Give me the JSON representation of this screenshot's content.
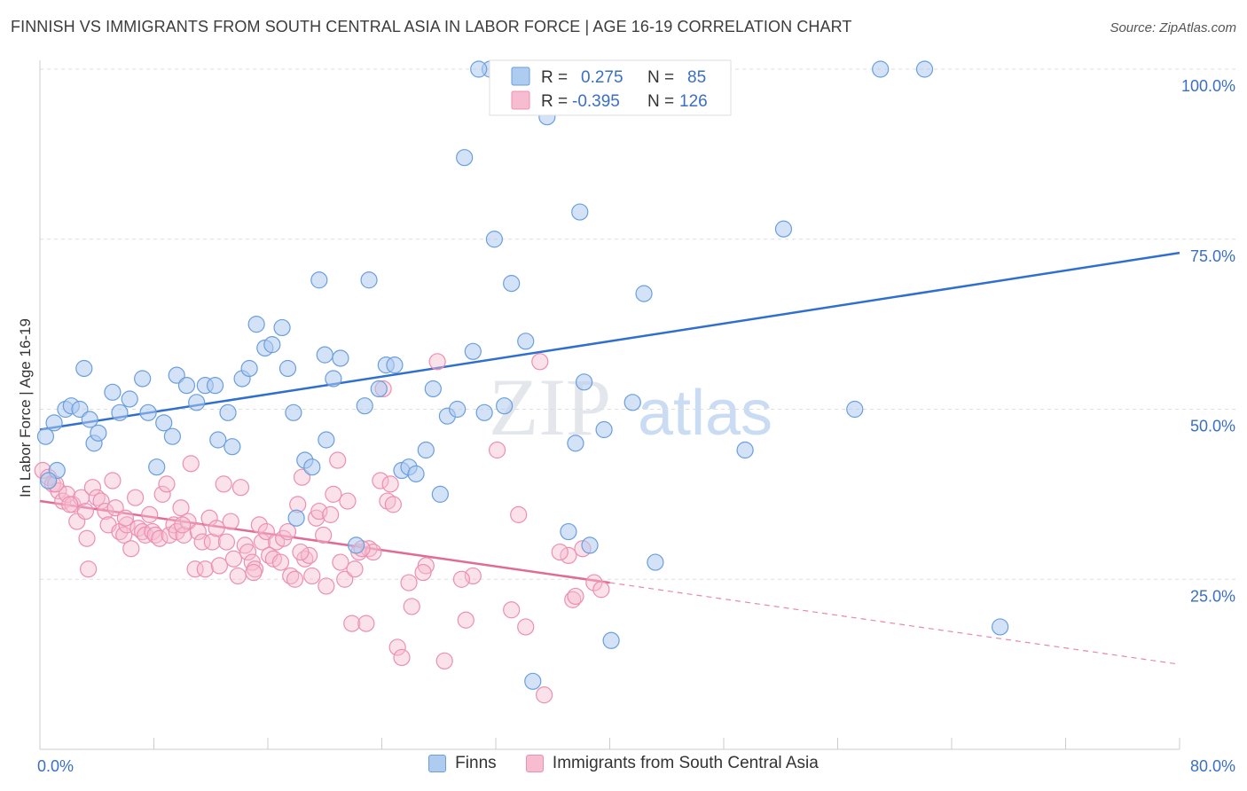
{
  "title": "FINNISH VS IMMIGRANTS FROM SOUTH CENTRAL ASIA IN LABOR FORCE | AGE 16-19 CORRELATION CHART",
  "source": "Source: ZipAtlas.com",
  "colors": {
    "blue_fill": "#aecbf0",
    "blue_stroke": "#6a9fdc",
    "blue_line": "#2f6fcf",
    "pink_fill": "#f7bcd0",
    "pink_stroke": "#ec8fb0",
    "pink_line": "#e06c96",
    "tick_text": "#3a6fc4",
    "grid": "#dddddd"
  },
  "legend_box": {
    "rows": [
      {
        "r_label": "R =",
        "r_value": "0.275",
        "n_label": "N =",
        "n_value": "85"
      },
      {
        "r_label": "R =",
        "r_value": "-0.395",
        "n_label": "N =",
        "n_value": "126"
      }
    ]
  },
  "bottom_legend": {
    "finns": "Finns",
    "immigrants": "Immigrants from South Central Asia"
  },
  "watermark": {
    "part1": "ZIP",
    "part2": "atlas"
  },
  "chart_data": {
    "type": "scatter",
    "title": "FINNISH VS IMMIGRANTS FROM SOUTH CENTRAL ASIA IN LABOR FORCE | AGE 16-19 CORRELATION CHART",
    "xlabel": "",
    "ylabel": "In Labor Force | Age 16-19",
    "xlim": [
      0,
      80
    ],
    "ylim": [
      0,
      100
    ],
    "x_tick_labels": [
      "0.0%",
      "80.0%"
    ],
    "y_tick_labels": [
      "100.0%",
      "75.0%",
      "50.0%",
      "25.0%"
    ],
    "y_ticks": [
      100,
      75,
      50,
      25
    ],
    "grid": true,
    "legend_placement": "bottom",
    "series": [
      {
        "name": "Finns",
        "r": 0.275,
        "n": 85,
        "trend": {
          "x": [
            0,
            80
          ],
          "y": [
            47.0,
            73.0
          ],
          "style": "solid"
        },
        "points": [
          [
            0.4,
            46.0
          ],
          [
            1.0,
            48.0
          ],
          [
            1.2,
            41.0
          ],
          [
            1.8,
            50.0
          ],
          [
            2.2,
            50.5
          ],
          [
            2.8,
            50.0
          ],
          [
            3.1,
            56.0
          ],
          [
            3.5,
            48.5
          ],
          [
            3.8,
            45.0
          ],
          [
            4.1,
            46.5
          ],
          [
            5.1,
            52.5
          ],
          [
            5.6,
            49.5
          ],
          [
            6.3,
            51.5
          ],
          [
            7.2,
            54.5
          ],
          [
            7.6,
            49.5
          ],
          [
            8.2,
            41.5
          ],
          [
            8.7,
            48.0
          ],
          [
            9.3,
            46.0
          ],
          [
            9.6,
            55.0
          ],
          [
            10.3,
            53.5
          ],
          [
            11.0,
            51.0
          ],
          [
            11.6,
            53.5
          ],
          [
            12.3,
            53.5
          ],
          [
            12.5,
            45.5
          ],
          [
            13.2,
            49.5
          ],
          [
            13.5,
            44.5
          ],
          [
            14.2,
            54.5
          ],
          [
            14.7,
            56.0
          ],
          [
            15.2,
            62.5
          ],
          [
            15.8,
            59.0
          ],
          [
            16.3,
            59.5
          ],
          [
            17.0,
            62.0
          ],
          [
            17.4,
            56.0
          ],
          [
            17.8,
            49.5
          ],
          [
            18.6,
            42.5
          ],
          [
            19.1,
            41.5
          ],
          [
            19.6,
            69.0
          ],
          [
            20.1,
            45.5
          ],
          [
            20.6,
            54.5
          ],
          [
            21.1,
            57.5
          ],
          [
            22.2,
            30.0
          ],
          [
            22.8,
            50.5
          ],
          [
            23.1,
            69.0
          ],
          [
            23.8,
            53.0
          ],
          [
            24.3,
            56.5
          ],
          [
            24.9,
            56.5
          ],
          [
            25.4,
            41.0
          ],
          [
            25.9,
            41.5
          ],
          [
            26.4,
            40.5
          ],
          [
            27.1,
            44.0
          ],
          [
            27.6,
            53.0
          ],
          [
            28.1,
            37.5
          ],
          [
            28.6,
            49.0
          ],
          [
            29.3,
            50.0
          ],
          [
            29.8,
            87.0
          ],
          [
            30.4,
            58.5
          ],
          [
            31.2,
            49.5
          ],
          [
            31.6,
            100.0
          ],
          [
            31.9,
            75.0
          ],
          [
            32.6,
            50.5
          ],
          [
            33.1,
            68.5
          ],
          [
            34.1,
            60.0
          ],
          [
            34.4,
            100.0
          ],
          [
            34.6,
            10.0
          ],
          [
            35.6,
            93.0
          ],
          [
            37.1,
            32.0
          ],
          [
            37.6,
            45.0
          ],
          [
            37.9,
            79.0
          ],
          [
            38.2,
            54.0
          ],
          [
            38.6,
            30.0
          ],
          [
            39.6,
            47.0
          ],
          [
            40.1,
            16.0
          ],
          [
            41.6,
            51.0
          ],
          [
            42.4,
            67.0
          ],
          [
            43.2,
            27.5
          ],
          [
            49.5,
            44.0
          ],
          [
            52.2,
            76.5
          ],
          [
            57.2,
            50.0
          ],
          [
            59.0,
            100.0
          ],
          [
            62.1,
            100.0
          ],
          [
            67.4,
            18.0
          ],
          [
            18.0,
            34.0
          ],
          [
            20.0,
            58.0
          ],
          [
            30.8,
            100.0
          ],
          [
            0.6,
            39.5
          ]
        ]
      },
      {
        "name": "Immigrants from South Central Asia",
        "r": -0.395,
        "n": 126,
        "trend": {
          "x": [
            0,
            40
          ],
          "y": [
            36.5,
            24.5
          ],
          "style": "solid"
        },
        "trend_extension": {
          "x": [
            40,
            80
          ],
          "y": [
            24.5,
            12.5
          ],
          "style": "dashed"
        },
        "points": [
          [
            0.2,
            41.0
          ],
          [
            0.6,
            40.0
          ],
          [
            0.9,
            39.0
          ],
          [
            1.3,
            38.0
          ],
          [
            1.6,
            36.5
          ],
          [
            1.9,
            37.5
          ],
          [
            2.3,
            36.0
          ],
          [
            2.6,
            33.5
          ],
          [
            2.9,
            37.0
          ],
          [
            3.2,
            35.0
          ],
          [
            3.4,
            26.5
          ],
          [
            3.7,
            38.5
          ],
          [
            4.0,
            37.0
          ],
          [
            4.3,
            36.5
          ],
          [
            4.6,
            35.0
          ],
          [
            4.8,
            33.0
          ],
          [
            5.1,
            39.5
          ],
          [
            5.3,
            35.5
          ],
          [
            5.6,
            32.0
          ],
          [
            5.9,
            31.5
          ],
          [
            6.1,
            33.0
          ],
          [
            6.4,
            29.5
          ],
          [
            6.7,
            37.0
          ],
          [
            6.9,
            32.5
          ],
          [
            7.2,
            32.0
          ],
          [
            7.4,
            31.5
          ],
          [
            7.7,
            34.5
          ],
          [
            7.9,
            32.0
          ],
          [
            8.1,
            31.5
          ],
          [
            8.4,
            31.0
          ],
          [
            8.6,
            37.5
          ],
          [
            8.9,
            39.0
          ],
          [
            9.1,
            31.5
          ],
          [
            9.4,
            33.0
          ],
          [
            9.6,
            32.0
          ],
          [
            9.9,
            35.5
          ],
          [
            10.1,
            31.5
          ],
          [
            10.4,
            33.5
          ],
          [
            10.6,
            42.0
          ],
          [
            10.9,
            26.5
          ],
          [
            11.1,
            32.0
          ],
          [
            11.4,
            30.5
          ],
          [
            11.6,
            26.5
          ],
          [
            11.9,
            34.0
          ],
          [
            12.1,
            30.5
          ],
          [
            12.4,
            32.5
          ],
          [
            12.6,
            27.0
          ],
          [
            12.9,
            39.0
          ],
          [
            13.1,
            30.5
          ],
          [
            13.4,
            33.5
          ],
          [
            13.6,
            28.0
          ],
          [
            13.9,
            25.5
          ],
          [
            14.1,
            38.5
          ],
          [
            14.4,
            30.0
          ],
          [
            14.6,
            29.0
          ],
          [
            14.9,
            27.5
          ],
          [
            15.1,
            26.5
          ],
          [
            15.4,
            33.0
          ],
          [
            15.6,
            30.5
          ],
          [
            15.9,
            32.0
          ],
          [
            16.1,
            28.5
          ],
          [
            16.4,
            28.0
          ],
          [
            16.6,
            30.5
          ],
          [
            16.9,
            27.5
          ],
          [
            17.1,
            31.0
          ],
          [
            17.4,
            32.0
          ],
          [
            17.6,
            25.5
          ],
          [
            17.9,
            25.0
          ],
          [
            18.1,
            36.0
          ],
          [
            18.4,
            40.0
          ],
          [
            18.6,
            28.0
          ],
          [
            18.9,
            28.5
          ],
          [
            19.1,
            25.5
          ],
          [
            19.4,
            34.0
          ],
          [
            19.6,
            35.0
          ],
          [
            19.9,
            31.5
          ],
          [
            20.1,
            24.0
          ],
          [
            20.4,
            34.5
          ],
          [
            20.6,
            37.5
          ],
          [
            20.9,
            42.5
          ],
          [
            21.1,
            27.5
          ],
          [
            21.4,
            25.0
          ],
          [
            21.6,
            36.5
          ],
          [
            21.9,
            18.5
          ],
          [
            22.1,
            26.5
          ],
          [
            22.4,
            29.0
          ],
          [
            22.9,
            18.5
          ],
          [
            23.1,
            29.5
          ],
          [
            23.4,
            29.0
          ],
          [
            23.9,
            39.5
          ],
          [
            24.1,
            53.0
          ],
          [
            24.4,
            36.5
          ],
          [
            24.6,
            39.0
          ],
          [
            25.1,
            15.0
          ],
          [
            25.4,
            13.5
          ],
          [
            25.9,
            24.5
          ],
          [
            26.1,
            21.0
          ],
          [
            27.1,
            27.0
          ],
          [
            27.9,
            57.0
          ],
          [
            28.4,
            13.0
          ],
          [
            29.9,
            19.0
          ],
          [
            30.4,
            25.5
          ],
          [
            32.1,
            44.0
          ],
          [
            33.1,
            20.5
          ],
          [
            33.6,
            34.5
          ],
          [
            34.1,
            18.0
          ],
          [
            35.1,
            57.0
          ],
          [
            35.4,
            8.0
          ],
          [
            37.1,
            28.5
          ],
          [
            37.4,
            22.0
          ],
          [
            37.6,
            22.5
          ],
          [
            38.1,
            29.5
          ],
          [
            38.9,
            24.5
          ],
          [
            39.4,
            23.5
          ],
          [
            1.1,
            39.0
          ],
          [
            2.1,
            36.0
          ],
          [
            3.3,
            31.0
          ],
          [
            6.0,
            34.0
          ],
          [
            10.0,
            33.0
          ],
          [
            15.0,
            26.0
          ],
          [
            18.3,
            29.0
          ],
          [
            22.6,
            29.5
          ],
          [
            24.8,
            36.0
          ],
          [
            26.9,
            26.0
          ],
          [
            29.6,
            25.0
          ],
          [
            36.5,
            29.0
          ]
        ]
      }
    ]
  }
}
